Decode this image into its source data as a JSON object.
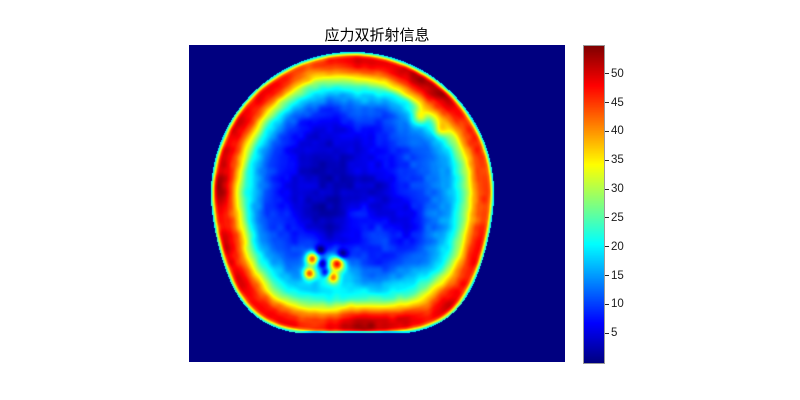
{
  "figure": {
    "background_color": "#ffffff"
  },
  "chart_data": {
    "type": "heatmap",
    "title": "应力双折射信息",
    "colormap": "jet",
    "value_range": [
      0,
      55
    ],
    "background_value": 0,
    "colorbar": {
      "ticks": [
        5,
        10,
        15,
        20,
        25,
        30,
        35,
        40,
        45,
        50
      ],
      "tick_color": "#262626",
      "border_color": "#9a9a9a",
      "position": "right"
    },
    "wafer": {
      "description": "circular wafer map, high stress (red ~45-50) rim, low stress (blue ~5-10) core, flat cut at bottom, defect cluster lower-left of center",
      "center": [
        0.4335,
        0.467
      ],
      "radius_frac": 0.375,
      "bottom_exponent": 3.4,
      "flat_y": 0.9085,
      "flat_edge_value": 21,
      "radial_profile": [
        [
          0,
          6.5
        ],
        [
          0.35,
          7
        ],
        [
          0.5,
          8.5
        ],
        [
          0.62,
          12
        ],
        [
          0.7,
          17
        ],
        [
          0.76,
          23
        ],
        [
          0.82,
          32
        ],
        [
          0.86,
          40
        ],
        [
          0.9,
          45
        ],
        [
          0.935,
          47
        ],
        [
          0.955,
          47
        ],
        [
          0.972,
          44
        ],
        [
          0.983,
          36
        ],
        [
          0.993,
          27
        ],
        [
          1,
          21
        ]
      ],
      "rim_band": [
        0.74,
        0.82,
        0.95,
        0.99
      ],
      "rim_hotspots": [
        {
          "angle": -1.0,
          "power": 12,
          "gain": 8
        },
        {
          "angle": 1.5,
          "power": 3,
          "gain": 3.5
        },
        {
          "angle": 3.14,
          "power": 8,
          "gain": 2.5
        },
        {
          "angle": -2.4,
          "power": 10,
          "gain": 2
        }
      ],
      "cool_patch": {
        "x": -0.25,
        "y": -0.08,
        "sigma": 0.32,
        "delta": -2.5
      },
      "defect_cluster": {
        "x": -0.157,
        "y": 0.525,
        "halo_sigma": 0.1,
        "halo_gain": 11,
        "blobs": [
          {
            "x": -0.128,
            "y": -0.064,
            "sigma": 0.032,
            "gain": 29
          },
          {
            "x": -0.149,
            "y": 0.043,
            "sigma": 0.03,
            "gain": 26
          },
          {
            "x": 0.05,
            "y": -0.028,
            "sigma": 0.034,
            "gain": 29
          },
          {
            "x": 0.021,
            "y": 0.071,
            "sigma": 0.028,
            "gain": 20
          },
          {
            "x": -0.057,
            "y": -0.028,
            "sigma": 0.026,
            "gain": -17
          },
          {
            "x": -0.035,
            "y": 0.035,
            "sigma": 0.024,
            "gain": -15
          },
          {
            "x": -0.071,
            "y": -0.12,
            "sigma": 0.026,
            "gain": -13
          },
          {
            "x": 0.085,
            "y": -0.092,
            "sigma": 0.028,
            "gain": -14
          }
        ]
      },
      "extra_blobs": [
        {
          "x": 0.48,
          "y": -0.55,
          "sigma": 0.04,
          "gain": 13
        },
        {
          "x": 0.62,
          "y": -0.45,
          "sigma": 0.035,
          "gain": 10
        }
      ],
      "noise": {
        "octaves": [
          [
            45,
            2.2
          ],
          [
            24,
            2.2
          ],
          [
            7,
            1.2
          ]
        ],
        "rim_extra_amp": 2.5
      }
    }
  }
}
